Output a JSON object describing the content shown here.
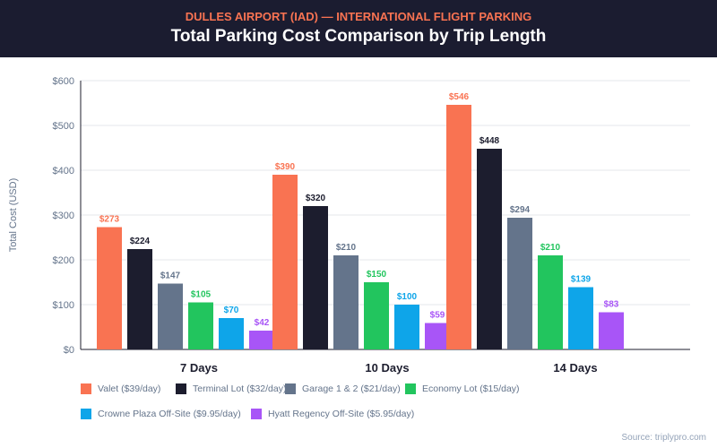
{
  "header": {
    "subtitle": "DULLES AIRPORT (IAD) — INTERNATIONAL FLIGHT PARKING",
    "title": "Total Parking Cost Comparison by Trip Length"
  },
  "source": "Source: triplypro.com",
  "chart_data": {
    "type": "bar",
    "title": "Total Parking Cost Comparison by Trip Length",
    "ylabel": "Total Cost (USD)",
    "xlabel": "",
    "ylim": [
      0,
      600
    ],
    "yticks": [
      "$0",
      "$100",
      "$200",
      "$300",
      "$400",
      "$500",
      "$600"
    ],
    "grid": true,
    "legend_position": "bottom",
    "categories": [
      "7 Days",
      "10 Days",
      "14 Days"
    ],
    "series": [
      {
        "name": "Valet ($39/day)",
        "color": "#f97352",
        "values": [
          273,
          390,
          546
        ]
      },
      {
        "name": "Terminal Lot ($32/day)",
        "color": "#1c1d2e",
        "values": [
          224,
          320,
          448
        ]
      },
      {
        "name": "Garage 1 & 2 ($21/day)",
        "color": "#64748b",
        "values": [
          147,
          210,
          294
        ]
      },
      {
        "name": "Economy Lot ($15/day)",
        "color": "#22c55e",
        "values": [
          105,
          150,
          210
        ]
      },
      {
        "name": "Crowne Plaza Off-Site ($9.95/day)",
        "color": "#0ea5e9",
        "values": [
          70,
          100,
          139
        ]
      },
      {
        "name": "Hyatt Regency Off-Site ($5.95/day)",
        "color": "#a855f7",
        "values": [
          42,
          59,
          83
        ]
      }
    ]
  }
}
